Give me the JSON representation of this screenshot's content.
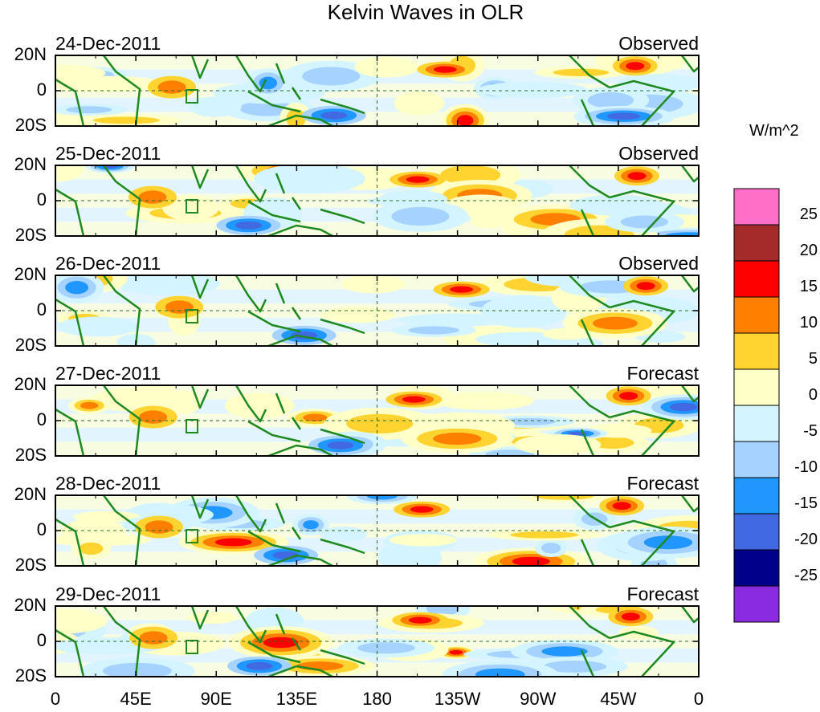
{
  "title": "Kelvin Waves in OLR",
  "panels": [
    {
      "date": "24-Dec-2011",
      "type": "Observed"
    },
    {
      "date": "25-Dec-2011",
      "type": "Observed"
    },
    {
      "date": "26-Dec-2011",
      "type": "Observed"
    },
    {
      "date": "27-Dec-2011",
      "type": "Forecast"
    },
    {
      "date": "28-Dec-2011",
      "type": "Forecast"
    },
    {
      "date": "29-Dec-2011",
      "type": "Forecast"
    }
  ],
  "lat_labels": [
    "20N",
    "0",
    "20S"
  ],
  "lon_labels": [
    "0",
    "45E",
    "90E",
    "135E",
    "180",
    "135W",
    "90W",
    "45W",
    "0"
  ],
  "colorbar": {
    "units": "W/m^2",
    "labels": [
      "25",
      "20",
      "15",
      "10",
      "5",
      "0",
      "-5",
      "-10",
      "-15",
      "-20",
      "-25"
    ],
    "colors": [
      "#ff6ec7",
      "#a52a2a",
      "#ff0000",
      "#ff7f00",
      "#ffd430",
      "#ffffc8",
      "#d4f4ff",
      "#a6d2ff",
      "#2096ff",
      "#4169e1",
      "#00008b",
      "#8a2be2"
    ]
  },
  "colors": {
    "coastline": "#1f8a1f",
    "border": "#000000",
    "reference_line": "#1f8a1f"
  }
}
